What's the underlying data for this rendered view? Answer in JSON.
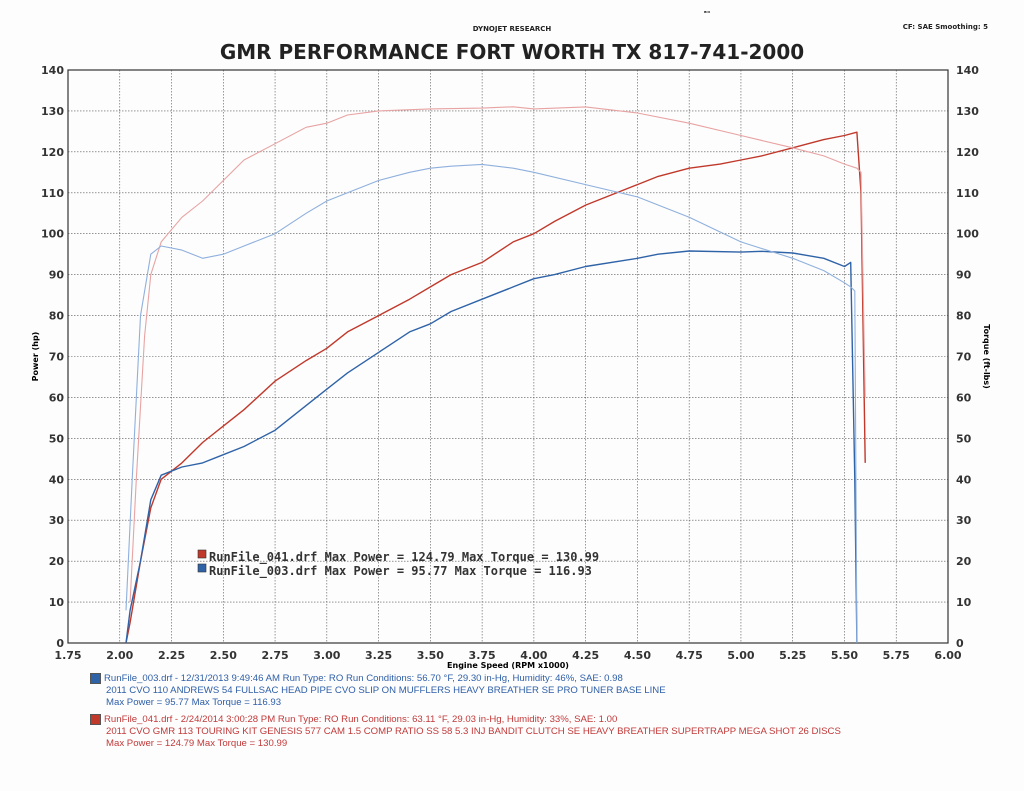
{
  "header": {
    "top_label": "DYNOJET RESEARCH",
    "right_label": "CF: SAE  Smoothing: 5",
    "mark": "ᴮᴵᴵᴵ",
    "title": "GMR PERFORMANCE FORT WORTH TX 817-741-2000"
  },
  "colors": {
    "red_power": "#c0392b",
    "red_torque": "#e8a3a3",
    "blue_power": "#2f63a8",
    "blue_torque": "#8fb0dd"
  },
  "legend": {
    "red_text": "RunFile_041.drf Max Power = 124.79     Max Torque = 130.99",
    "blue_text": "RunFile_003.drf Max Power = 95.77     Max Torque = 116.93"
  },
  "footnotes": {
    "blue": {
      "line1": "RunFile_003.drf - 12/31/2013 9:49:46 AM  Run Type: RO  Run Conditions: 56.70 °F, 29.30 in-Hg,  Humidity:  46%, SAE: 0.98",
      "line2": "2011 CVO 110 ANDREWS 54 FULLSAC HEAD PIPE CVO SLIP ON MUFFLERS HEAVY BREATHER SE  PRO TUNER  BASE LINE",
      "line3": "Max Power = 95.77  Max Torque = 116.93"
    },
    "red": {
      "line1": "RunFile_041.drf - 2/24/2014 3:00:28 PM  Run Type: RO  Run Conditions: 63.11 °F, 29.03 in-Hg,  Humidity:  33%, SAE: 1.00",
      "line2": "2011 CVO GMR 113 TOURING KIT GENESIS 577 CAM 1.5 COMP RATIO  SS 58 5.3 INJ BANDIT CLUTCH SE HEAVY BREATHER  SUPERTRAPP MEGA SHOT  26 DISCS",
      "line3": "Max Power = 124.79  Max Torque = 130.99"
    }
  },
  "chart_data": {
    "type": "line",
    "xlabel": "Engine Speed (RPM x1000)",
    "ylabel_left": "Power (hp)",
    "ylabel_right": "Torque (ft-lbs)",
    "xlim": [
      1.75,
      6.0
    ],
    "ylim": [
      0,
      140
    ],
    "x_ticks": [
      "1.75",
      "2.00",
      "2.25",
      "2.50",
      "2.75",
      "3.00",
      "3.25",
      "3.50",
      "3.75",
      "4.00",
      "4.25",
      "4.50",
      "4.75",
      "5.00",
      "5.25",
      "5.50",
      "5.75",
      "6.00"
    ],
    "y_ticks": [
      "0",
      "10",
      "20",
      "30",
      "40",
      "50",
      "60",
      "70",
      "80",
      "90",
      "100",
      "110",
      "120",
      "130",
      "140"
    ],
    "grid": true,
    "series": [
      {
        "name": "RunFile_041.drf",
        "kind": "power",
        "color": "#c0392b",
        "x": [
          2.03,
          2.05,
          2.1,
          2.15,
          2.2,
          2.3,
          2.4,
          2.5,
          2.6,
          2.75,
          2.9,
          3.0,
          3.1,
          3.25,
          3.4,
          3.5,
          3.6,
          3.75,
          3.9,
          4.0,
          4.1,
          4.25,
          4.35,
          4.5,
          4.6,
          4.75,
          4.9,
          5.0,
          5.1,
          5.25,
          5.4,
          5.5,
          5.56,
          5.58,
          5.6
        ],
        "y": [
          0,
          5,
          20,
          33,
          40,
          44,
          49,
          53,
          57,
          64,
          69,
          72,
          76,
          80,
          84,
          87,
          90,
          93,
          98,
          100,
          103,
          107,
          109,
          112,
          114,
          116,
          117,
          118,
          119,
          121,
          123,
          124,
          124.8,
          110,
          44
        ]
      },
      {
        "name": "RunFile_041.drf",
        "kind": "torque",
        "color": "#e8a3a3",
        "x": [
          2.05,
          2.08,
          2.12,
          2.15,
          2.2,
          2.3,
          2.4,
          2.5,
          2.6,
          2.75,
          2.9,
          3.0,
          3.1,
          3.25,
          3.5,
          3.75,
          3.9,
          4.0,
          4.25,
          4.5,
          4.75,
          5.0,
          5.25,
          5.4,
          5.5,
          5.56,
          5.58,
          5.6
        ],
        "y": [
          10,
          40,
          75,
          90,
          98,
          104,
          108,
          113,
          118,
          122,
          126,
          127,
          129,
          130,
          130.5,
          130.7,
          131,
          130.5,
          130.99,
          129.5,
          127,
          124,
          121,
          119,
          117,
          116,
          115,
          60
        ]
      },
      {
        "name": "RunFile_003.drf",
        "kind": "power",
        "color": "#2f63a8",
        "x": [
          2.03,
          2.05,
          2.1,
          2.15,
          2.2,
          2.3,
          2.4,
          2.5,
          2.6,
          2.75,
          2.9,
          3.0,
          3.1,
          3.25,
          3.4,
          3.5,
          3.6,
          3.75,
          3.9,
          4.0,
          4.1,
          4.25,
          4.5,
          4.6,
          4.75,
          5.0,
          5.1,
          5.25,
          5.4,
          5.5,
          5.53,
          5.55,
          5.56
        ],
        "y": [
          0,
          8,
          20,
          35,
          41,
          43,
          44,
          46,
          48,
          52,
          58,
          62,
          66,
          71,
          76,
          78,
          81,
          84,
          87,
          89,
          90,
          92,
          94,
          95,
          95.77,
          95.5,
          95.7,
          95.3,
          94,
          92,
          93,
          40,
          0
        ]
      },
      {
        "name": "RunFile_003.drf",
        "kind": "torque",
        "color": "#8fb0dd",
        "x": [
          2.03,
          2.06,
          2.1,
          2.15,
          2.2,
          2.3,
          2.4,
          2.5,
          2.6,
          2.75,
          2.9,
          3.0,
          3.1,
          3.25,
          3.4,
          3.5,
          3.6,
          3.75,
          3.9,
          4.0,
          4.25,
          4.5,
          4.75,
          5.0,
          5.25,
          5.4,
          5.5,
          5.53,
          5.55,
          5.56
        ],
        "y": [
          8,
          40,
          80,
          95,
          97,
          96,
          94,
          95,
          97,
          100,
          105,
          108,
          110,
          113,
          115,
          116,
          116.5,
          116.93,
          116,
          115,
          112,
          109,
          104,
          98,
          94,
          91,
          88,
          87,
          86,
          0
        ]
      }
    ]
  }
}
